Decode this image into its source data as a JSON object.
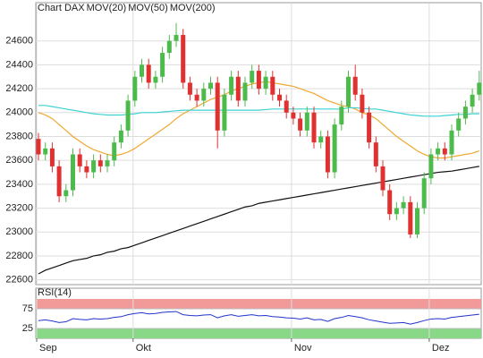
{
  "chart_data": [
    {
      "type": "candlestick",
      "title": "Chart DAX",
      "title_color": "#e03c31",
      "up_color": "#4cbb4c",
      "down_color": "#e03030",
      "categories": [
        "Sep",
        null,
        null,
        null,
        null,
        null,
        null,
        null,
        null,
        null,
        null,
        null,
        null,
        null,
        "Okt",
        null,
        null,
        null,
        null,
        null,
        null,
        null,
        null,
        null,
        null,
        null,
        null,
        null,
        null,
        null,
        null,
        null,
        null,
        null,
        null,
        null,
        null,
        "Nov",
        null,
        null,
        null,
        null,
        null,
        null,
        null,
        null,
        null,
        null,
        null,
        null,
        null,
        null,
        null,
        null,
        null,
        null,
        null,
        "Dez",
        null,
        null,
        null,
        null,
        null,
        null,
        null
      ],
      "open": [
        23780,
        23650,
        23700,
        23550,
        23300,
        23350,
        23650,
        23550,
        23500,
        23600,
        23550,
        23600,
        23750,
        23850,
        24100,
        24300,
        24400,
        24250,
        24300,
        24500,
        24600,
        24650,
        24250,
        24150,
        24100,
        24200,
        24250,
        23850,
        24150,
        24300,
        24100,
        24250,
        24350,
        24200,
        24300,
        24150,
        24100,
        24000,
        23950,
        23850,
        24000,
        23750,
        23800,
        23500,
        23900,
        24050,
        24300,
        24150,
        24000,
        23750,
        23550,
        23350,
        23150,
        23200,
        23250,
        22980,
        23200,
        23450,
        23650,
        23700,
        23650,
        23850,
        23950,
        24050,
        24150
      ],
      "high": [
        23830,
        23750,
        23750,
        23600,
        23400,
        23700,
        23700,
        23600,
        23650,
        23650,
        23650,
        23800,
        23900,
        24150,
        24350,
        24450,
        24450,
        24350,
        24550,
        24650,
        24750,
        24700,
        24300,
        24200,
        24250,
        24300,
        24300,
        24200,
        24350,
        24350,
        24300,
        24400,
        24400,
        24350,
        24350,
        24200,
        24150,
        24050,
        24000,
        24050,
        24050,
        23850,
        23850,
        23950,
        24100,
        24350,
        24400,
        24200,
        24050,
        23800,
        23600,
        23400,
        23250,
        23300,
        23300,
        23250,
        23500,
        23700,
        23750,
        23750,
        23900,
        24000,
        24100,
        24200,
        24350
      ],
      "low": [
        23600,
        23600,
        23500,
        23250,
        23250,
        23300,
        23500,
        23450,
        23450,
        23500,
        23500,
        23550,
        23700,
        23800,
        24050,
        24250,
        24200,
        24200,
        24250,
        24450,
        24550,
        24200,
        24100,
        24050,
        24050,
        24150,
        23700,
        23800,
        24100,
        24050,
        24050,
        24200,
        24150,
        24150,
        24100,
        24050,
        23950,
        23900,
        23800,
        23800,
        23700,
        23700,
        23450,
        23450,
        23850,
        24000,
        24100,
        23950,
        23700,
        23500,
        23300,
        23100,
        23100,
        23150,
        22950,
        22950,
        23150,
        23400,
        23600,
        23600,
        23600,
        23800,
        23900,
        24000,
        24100
      ],
      "close": [
        23650,
        23700,
        23550,
        23300,
        23350,
        23650,
        23550,
        23500,
        23600,
        23550,
        23600,
        23750,
        23850,
        24100,
        24300,
        24400,
        24250,
        24300,
        24500,
        24600,
        24650,
        24250,
        24150,
        24100,
        24200,
        24250,
        23850,
        24150,
        24300,
        24100,
        24250,
        24350,
        24200,
        24300,
        24150,
        24100,
        24000,
        23950,
        23850,
        24000,
        23750,
        23800,
        23500,
        23900,
        24050,
        24300,
        24150,
        24000,
        23750,
        23550,
        23350,
        23150,
        23200,
        23250,
        22980,
        23200,
        23450,
        23650,
        23700,
        23650,
        23850,
        23950,
        24050,
        24150,
        24250
      ],
      "series": [
        {
          "name": "MOV(20)",
          "color": "#f0a830",
          "values": [
            24000,
            23980,
            23950,
            23900,
            23850,
            23800,
            23760,
            23720,
            23690,
            23670,
            23650,
            23640,
            23650,
            23670,
            23700,
            23740,
            23780,
            23820,
            23860,
            23900,
            23950,
            23990,
            24020,
            24050,
            24080,
            24110,
            24130,
            24150,
            24180,
            24200,
            24220,
            24240,
            24250,
            24260,
            24250,
            24240,
            24230,
            24220,
            24200,
            24180,
            24160,
            24130,
            24100,
            24080,
            24060,
            24050,
            24030,
            24000,
            23980,
            23950,
            23900,
            23850,
            23800,
            23760,
            23720,
            23680,
            23650,
            23630,
            23620,
            23620,
            23630,
            23640,
            23650,
            23660,
            23680
          ]
        },
        {
          "name": "MOV(50)",
          "color": "#3cd2d2",
          "values": [
            24060,
            24060,
            24050,
            24040,
            24030,
            24020,
            24010,
            24000,
            23990,
            23985,
            23980,
            23980,
            23980,
            23985,
            23990,
            24000,
            24000,
            24000,
            24005,
            24010,
            24015,
            24020,
            24020,
            24020,
            24020,
            24020,
            24020,
            24020,
            24020,
            24020,
            24020,
            24020,
            24020,
            24025,
            24030,
            24030,
            24030,
            24030,
            24030,
            24030,
            24030,
            24030,
            24030,
            24030,
            24030,
            24040,
            24040,
            24035,
            24030,
            24030,
            24020,
            24010,
            24000,
            23990,
            23980,
            23975,
            23970,
            23970,
            23970,
            23975,
            23980,
            23985,
            23985,
            23990,
            23990
          ]
        },
        {
          "name": "MOV(200)",
          "color": "#111111",
          "values": [
            22650,
            22680,
            22700,
            22720,
            22740,
            22760,
            22770,
            22780,
            22800,
            22810,
            22830,
            22840,
            22860,
            22870,
            22890,
            22910,
            22930,
            22950,
            22970,
            22990,
            23010,
            23030,
            23050,
            23070,
            23090,
            23110,
            23130,
            23150,
            23170,
            23190,
            23210,
            23220,
            23240,
            23250,
            23260,
            23270,
            23280,
            23290,
            23300,
            23310,
            23320,
            23330,
            23340,
            23350,
            23360,
            23370,
            23380,
            23390,
            23400,
            23410,
            23420,
            23430,
            23440,
            23450,
            23460,
            23470,
            23480,
            23490,
            23500,
            23505,
            23510,
            23520,
            23530,
            23540,
            23550
          ]
        }
      ],
      "ylim": [
        22560,
        24920
      ],
      "yticks": [
        22600,
        22800,
        23000,
        23200,
        23400,
        23600,
        23800,
        24000,
        24200,
        24400,
        24600
      ],
      "grid": true
    },
    {
      "type": "line",
      "title": "RSI(14)",
      "series": [
        {
          "name": "RSI(14)",
          "color": "#2233cc",
          "values": [
            45,
            47,
            44,
            40,
            42,
            50,
            48,
            47,
            50,
            49,
            50,
            53,
            55,
            60,
            63,
            65,
            62,
            63,
            66,
            67,
            68,
            60,
            58,
            57,
            59,
            60,
            52,
            57,
            60,
            56,
            58,
            60,
            57,
            58,
            55,
            54,
            52,
            51,
            49,
            52,
            47,
            48,
            43,
            50,
            53,
            58,
            55,
            52,
            47,
            44,
            41,
            38,
            39,
            40,
            36,
            40,
            45,
            49,
            50,
            49,
            53,
            55,
            57,
            59,
            61
          ]
        }
      ],
      "ylim": [
        0,
        100
      ],
      "yticks": [
        25,
        75
      ],
      "band_colors": [
        "#88d888",
        "#f29a9a"
      ]
    }
  ]
}
